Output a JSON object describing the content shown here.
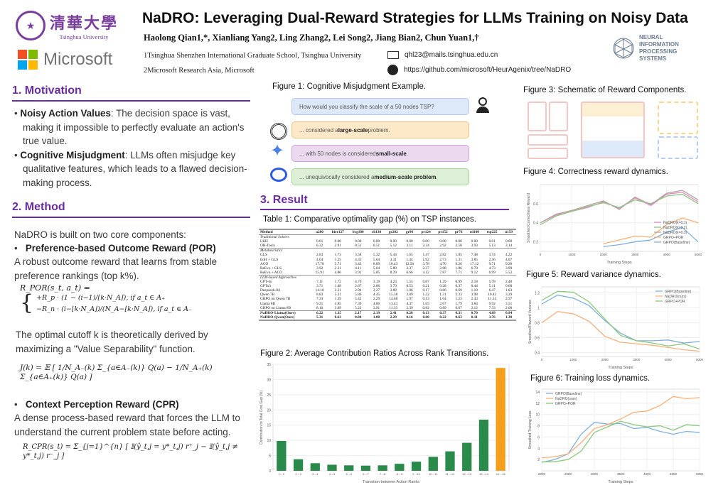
{
  "header": {
    "title": "NaDRO: Leveraging Dual-Reward Strategies for LLMs Training on Noisy Data",
    "authors": "Haolong Qian1,*, Xianliang Yang2, Ling Zhang2, Lei Song2, Jiang Bian2, Chun Yuan1,†",
    "affiliation1": "1Tsinghua Shenzhen International Graduate School, Tsinghua University",
    "affiliation2": "2Microsoft Research Asia, Microsoft",
    "email": "qhl23@mails.tsinghua.edu.cn",
    "github": "https://github.com/microsoft/HeurAgenix/tree/NaDRO",
    "logos": {
      "tsinghua_cn": "清華大學",
      "tsinghua_en": "Tsinghua University",
      "microsoft": "Microsoft",
      "neurips": "NEURAL INFORMATION PROCESSING SYSTEMS"
    }
  },
  "motivation": {
    "heading": "1. Motivation",
    "b1_title": "Noisy Action Values",
    "b1_text": ": The decision space is vast, making it impossible to perfectly evaluate an action's true value.",
    "b2_title": "Cognitive Misjudgment",
    "b2_text": ": LLMs often misjudge key qualitative features, which leads to a flawed decision-making process."
  },
  "method": {
    "heading": "2. Method",
    "intro": "NaDRO is built on two core components:",
    "por_title": "Preference-based Outcome Reward  (POR)",
    "por_text": "A robust outcome reward that learns from stable preference rankings (top k%).",
    "por_formula_lhs": "R_POR(s_t, a_t) =",
    "por_case1": "+R_p · (1 − (i−1)/⌊k·N_A⌋),   if a_t ∈ A₊",
    "por_case2": "−R_n · (i−⌊k·N_A⌋)/(N_A−⌊k·N_A⌋),   if a_t ∈ A₋",
    "cutoff_text": "The optimal cutoff k is theoretically derived by maximizing a \"Value Separability\" function.",
    "j_formula": "J(k) = 𝔼 [ 1/N_A₋(k) Σ_{a∈A₋(k)} Q(a) − 1/N_A₊(k) Σ_{a∈A₊(k)} Q(a) ]",
    "cpr_title": "Context Perception Reward (CPR)",
    "cpr_text": "A dense process-based reward that forces the LLM to understand the current problem state before acting.",
    "cpr_formula": "R_CPR(s_t) = Σ_{j=1}^{n} [ 𝕀(ŷ_t,j = y*_t,j) r⁺_j − 𝕀(ŷ_t,j ≠ y*_t,j) r⁻_j ]"
  },
  "figure1": {
    "caption": "Figure 1: Cognitive Misjudgment Example.",
    "question": "How would you classify the scale of a 50 nodes TSP?",
    "answers": [
      {
        "pre": "... considered a ",
        "bold": "large-scale",
        "post": " problem.",
        "bg": "#fde9c8",
        "border": "#f2c47f"
      },
      {
        "pre": "... with 50 nodes is considered ",
        "bold": "small-scale",
        "post": ".",
        "bg": "#ead9ef",
        "border": "#cba6d6"
      },
      {
        "pre": "... unequivocally considered a ",
        "bold": "medium-scale problem",
        "post": ".",
        "bg": "#ddefd6",
        "border": "#a7d49a"
      }
    ]
  },
  "result": {
    "heading": "3. Result"
  },
  "table1": {
    "caption": "Table 1: Comparative optimality gap (%) on TSP instances.",
    "columns": [
      "Method",
      "a280",
      "bier127",
      "bcg180",
      "ch130",
      "gr202",
      "gr96",
      "pr124",
      "pr152",
      "pr76",
      "rd100",
      "tsp225",
      "u159"
    ],
    "groups": [
      {
        "name": "Traditional Solvers",
        "rows": [
          [
            "LKH",
            "0.01",
            "0.00",
            "0.00",
            "0.00",
            "0.00",
            "0.00",
            "0.00",
            "0.00",
            "0.00",
            "0.00",
            "0.01",
            "0.00"
          ],
          [
            "OR-Tools",
            "6.32",
            "2.91",
            "0.51",
            "0.51",
            "5.12",
            "3.11",
            "2.34",
            "2.92",
            "2.58",
            "3.93",
            "5.13",
            "3.14"
          ]
        ]
      },
      {
        "name": "Metaheuristics",
        "rows": [
          [
            "GLS",
            "2.83",
            "1.73",
            "3.58",
            "5.32",
            "5.44",
            "1.65",
            "1.47",
            "2.82",
            "1.05",
            "7.48",
            "3.74",
            "4.22"
          ],
          [
            "EoH + GLS",
            "4.04",
            "1.25",
            "4.35",
            "5.64",
            "3.31",
            "1.34",
            "1.92",
            "2.73",
            "1.31",
            "3.85",
            "2.56",
            "4.07"
          ],
          [
            "ACO",
            "17.78",
            "5.71",
            "3.43",
            "8.89",
            "10.43",
            "12.58",
            "3.78",
            "4.70",
            "9.26",
            "17.12",
            "9.71",
            "9.28"
          ],
          [
            "ReEvo + GLS",
            "3.92",
            "2.31",
            "4.11",
            "5.04",
            "5.80",
            "2.37",
            "2.37",
            "2.88",
            "1.86",
            "6.70",
            "4.73",
            "3.99"
          ],
          [
            "ReEvo + ACO",
            "15.91",
            "4.86",
            "3.91",
            "5.85",
            "8.29",
            "6.66",
            "4.12",
            "7.87",
            "7.71",
            "9.12",
            "6.99",
            "5.52"
          ]
        ]
      },
      {
        "name": "LLM-based Approaches",
        "rows": [
          [
            "GPT-4o",
            "7.11",
            "1.72",
            "4.70",
            "3.19",
            "4.23",
            "1.55",
            "0.87",
            "1.29",
            "0.99",
            "2.18",
            "5.78",
            "2.48"
          ],
          [
            "GPTo3",
            "3.71",
            "1.48",
            "2.67",
            "2.86",
            "3.79",
            "0.53",
            "0.21",
            "0.28",
            "0.37",
            "0.44",
            "5.11",
            "0.68"
          ],
          [
            "Deepseek-R1",
            "14.10",
            "2.31",
            "2.94",
            "2.27",
            "3.88",
            "1.06",
            "0.17",
            "0.86",
            "0.69",
            "1.18",
            "6.47",
            "1.83"
          ],
          [
            "Qwen 7B",
            "8.83",
            "5.31",
            "5.86",
            "4.45",
            "15.38",
            "3.89",
            "1.22",
            "1.31",
            "2.33",
            "3.98",
            "10.42",
            "3.29"
          ],
          [
            "GRPO on Qwen 7B",
            "7.33",
            "1.39",
            "5.42",
            "2.29",
            "14.68",
            "1.97",
            "0.13",
            "1.04",
            "1.23",
            "2.43",
            "11.14",
            "2.57"
          ],
          [
            "Llama 8B",
            "9.21",
            "4.85",
            "7.39",
            "4.86",
            "13.43",
            "4.47",
            "1.65",
            "2.07",
            "1.79",
            "3.84",
            "9.92",
            "3.51"
          ],
          [
            "GRPO on Llama 8B",
            "8.10",
            "3.09",
            "5.22",
            "3.91",
            "11.33",
            "2.39",
            "0.82",
            "0.89",
            "0.67",
            "2.12",
            "7.33",
            "2.08"
          ]
        ]
      },
      {
        "name": "",
        "ours": true,
        "rows": [
          [
            "NaDRO-Llama(Ours)",
            "6.22",
            "1.35",
            "2.17",
            "2.19",
            "2.41",
            "0.28",
            "0.13",
            "0.37",
            "0.31",
            "0.70",
            "4.89",
            "0.94"
          ],
          [
            "NaDRO-Qwen(Ours)",
            "5.31",
            "0.63",
            "0.08",
            "1.80",
            "2.29",
            "0.16",
            "0.00",
            "0.22",
            "0.63",
            "0.11",
            "3.76",
            "1.38"
          ]
        ]
      }
    ]
  },
  "figure2": {
    "caption": "Figure 2: Average Contribution Ratios Across Rank Transitions."
  },
  "figure3": {
    "caption": "Figure 3: Schematic of Reward Components."
  },
  "figure4": {
    "caption": "Figure 4: Correctness reward dynamics."
  },
  "figure5": {
    "caption": "Figure 5: Reward variance dynamics."
  },
  "figure6": {
    "caption": "Figure 6: Training loss dynamics."
  },
  "chart_data": [
    {
      "id": "fig2",
      "type": "bar",
      "title": "",
      "xlabel": "Transition between Action Ranks",
      "ylabel": "Contribution to Total Cost Gap (%)",
      "categories": [
        "1→2",
        "2→3",
        "3→4",
        "4→5",
        "5→6",
        "6→7",
        "7→8",
        "8→9",
        "9→10",
        "10→11",
        "11→12",
        "12→13",
        "13→14",
        "14→15"
      ],
      "values": [
        9.8,
        3.8,
        2.5,
        2.0,
        1.8,
        1.7,
        1.8,
        2.3,
        3.0,
        4.6,
        6.4,
        9.2,
        16.8,
        33.8
      ],
      "colors": [
        "#2a8a4a",
        "#2a8a4a",
        "#2a8a4a",
        "#2a8a4a",
        "#2a8a4a",
        "#2a8a4a",
        "#2a8a4a",
        "#2a8a4a",
        "#2a8a4a",
        "#2a8a4a",
        "#2a8a4a",
        "#2a8a4a",
        "#2a8a4a",
        "#f5a01a"
      ],
      "ylim": [
        0,
        35
      ],
      "yticks": [
        0,
        5,
        10,
        15,
        20,
        25,
        30,
        35
      ],
      "grid": true
    },
    {
      "id": "fig4",
      "type": "line",
      "xlabel": "Training Steps",
      "ylabel": "Smoothed Correctness Reward",
      "xlim": [
        0,
        5000
      ],
      "ylim": [
        0.1,
        0.8
      ],
      "xticks": [
        0,
        1000,
        2000,
        3000,
        4000,
        5000
      ],
      "yticks": [
        0.2,
        0.4,
        0.6
      ],
      "legend": "bottom-right",
      "series": [
        {
          "name": "NaDRO(k=0.1)",
          "color": "#e48ac4",
          "x": [
            0,
            500,
            1000,
            1500,
            2000,
            2500,
            3000,
            3500,
            4000,
            4500,
            5000
          ],
          "y": [
            0.4,
            0.48,
            0.52,
            0.56,
            0.62,
            0.55,
            0.66,
            0.58,
            0.7,
            0.72,
            0.62
          ]
        },
        {
          "name": "NaDRO(k=0.2)",
          "color": "#8bc97d",
          "x": [
            0,
            500,
            1000,
            1500,
            2000,
            2500,
            3000,
            3500,
            4000,
            4500,
            5000
          ],
          "y": [
            0.38,
            0.47,
            0.52,
            0.57,
            0.61,
            0.56,
            0.64,
            0.6,
            0.68,
            0.7,
            0.6
          ]
        },
        {
          "name": "NaDRO(k=0.3)",
          "color": "#b5a3a3",
          "x": [
            0,
            500,
            1000,
            1500,
            2000,
            2500,
            3000,
            3500,
            4000,
            4500,
            5000
          ],
          "y": [
            0.4,
            0.49,
            0.53,
            0.58,
            0.63,
            0.54,
            0.67,
            0.59,
            0.71,
            0.74,
            0.64
          ]
        },
        {
          "name": "GRPO+POR",
          "color": "#f7b07a",
          "x": [
            2000,
            2500,
            3000,
            3500,
            4000,
            4500,
            5000
          ],
          "y": [
            0.18,
            0.22,
            0.26,
            0.25,
            0.38,
            0.45,
            0.4
          ]
        },
        {
          "name": "GRPO(Baseline)",
          "color": "#7fb0dd",
          "x": [
            2000,
            2500,
            3000,
            3500,
            4000,
            4500,
            5000
          ],
          "y": [
            0.15,
            0.17,
            0.2,
            0.22,
            0.3,
            0.35,
            0.2
          ]
        }
      ]
    },
    {
      "id": "fig5",
      "type": "line",
      "xlabel": "Training Steps",
      "ylabel": "Smoothed Reward Variance",
      "xlim": [
        0,
        5000
      ],
      "ylim": [
        0.35,
        1.28
      ],
      "xticks": [
        0,
        1000,
        2000,
        3000,
        4000,
        5000
      ],
      "yticks": [
        0.4,
        0.6,
        0.8,
        1.0,
        1.2
      ],
      "legend": "top-right",
      "series": [
        {
          "name": "GRPO(Baseline)",
          "color": "#7fb0dd",
          "x": [
            0,
            500,
            1000,
            1500,
            2000,
            2500,
            3000,
            3500,
            4000,
            4500,
            5000
          ],
          "y": [
            1.05,
            1.17,
            1.13,
            1.03,
            0.83,
            0.66,
            0.56,
            0.56,
            0.57,
            0.53,
            0.55
          ]
        },
        {
          "name": "NaDRO(ours)",
          "color": "#f7b07a",
          "x": [
            0,
            500,
            1000,
            1500,
            2000,
            2500,
            3000,
            3500,
            4000,
            4500,
            5000
          ],
          "y": [
            0.8,
            0.95,
            0.92,
            0.82,
            0.62,
            0.54,
            0.52,
            0.5,
            0.47,
            0.44,
            0.42
          ]
        },
        {
          "name": "GRPO+POR",
          "color": "#8bc97d",
          "x": [
            0,
            500,
            1000,
            1500,
            2000,
            2500,
            3000,
            3500,
            4000,
            4500,
            5000
          ],
          "y": [
            1.1,
            1.22,
            1.21,
            1.08,
            0.85,
            0.63,
            0.56,
            0.53,
            0.49,
            0.52,
            0.45
          ]
        }
      ]
    },
    {
      "id": "fig6",
      "type": "line",
      "xlabel": "Training Steps",
      "ylabel": "Smoothed Training Loss",
      "xlim": [
        2000,
        5000
      ],
      "ylim": [
        0,
        14.5
      ],
      "xticks": [
        2000,
        2500,
        3000,
        3500,
        4000,
        4500,
        5000
      ],
      "yticks": [
        2,
        4,
        6,
        8,
        10,
        12,
        14
      ],
      "legend": "top-left",
      "series": [
        {
          "name": "GRPO(Baseline)",
          "color": "#7fb0dd",
          "x": [
            2000,
            2250,
            2500,
            2750,
            3000,
            3250,
            3500,
            3750,
            4000,
            4250,
            4500,
            4750,
            5000
          ],
          "y": [
            1.5,
            2.0,
            3.0,
            6.5,
            8.6,
            8.3,
            8.4,
            7.5,
            7.7,
            7.0,
            6.5,
            7.0,
            6.8
          ]
        },
        {
          "name": "NaDRO(ours)",
          "color": "#f7b07a",
          "x": [
            2000,
            2250,
            2500,
            2750,
            3000,
            3250,
            3500,
            3750,
            4000,
            4250,
            4500,
            4750,
            5000
          ],
          "y": [
            2.3,
            2.5,
            3.0,
            5.0,
            7.5,
            8.2,
            9.2,
            10.4,
            10.6,
            11.6,
            13.2,
            12.8,
            13.0
          ]
        },
        {
          "name": "GRPO+POR",
          "color": "#8bc97d",
          "x": [
            2000,
            2250,
            2500,
            2750,
            3000,
            3250,
            3500,
            3750,
            4000,
            4250,
            4500,
            4750,
            5000
          ],
          "y": [
            1.6,
            1.6,
            2.0,
            3.5,
            6.8,
            7.8,
            8.8,
            8.2,
            7.8,
            8.0,
            7.2,
            8.2,
            8.0
          ]
        }
      ]
    }
  ]
}
